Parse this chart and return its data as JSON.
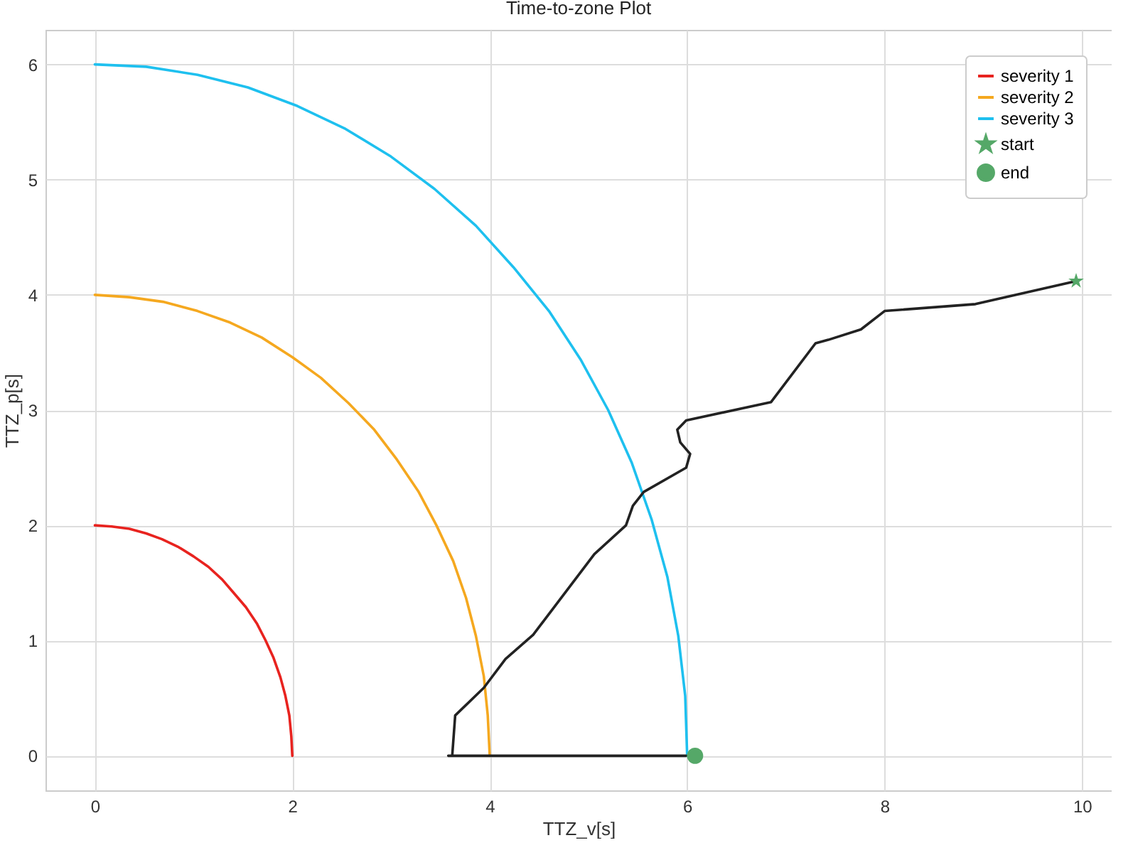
{
  "chart_data": {
    "type": "line",
    "title": "Time-to-zone Plot",
    "xlabel": "TTZ_v[s]",
    "ylabel": "TTZ_p[s]",
    "xlim": [
      -0.5,
      10.3
    ],
    "ylim": [
      -0.3,
      6.3
    ],
    "xticks": [
      0,
      2,
      4,
      6,
      8,
      10
    ],
    "yticks": [
      0,
      1,
      2,
      3,
      4,
      5,
      6
    ],
    "grid": true,
    "legend": "top right",
    "line_style": "solid",
    "series": [
      {
        "name": "severity 1",
        "color": "#e8231f",
        "x": [
          2,
          1.99,
          1.97,
          1.93,
          1.88,
          1.81,
          1.73,
          1.64,
          1.53,
          1.41,
          1.29,
          1.15,
          1,
          0.85,
          0.68,
          0.52,
          0.35,
          0.17,
          0
        ],
        "values": [
          0,
          0.17,
          0.35,
          0.52,
          0.68,
          0.85,
          1,
          1.15,
          1.29,
          1.41,
          1.53,
          1.64,
          1.73,
          1.81,
          1.88,
          1.93,
          1.97,
          1.99,
          2
        ]
      },
      {
        "name": "severity 2",
        "color": "#f5a81f",
        "x": [
          4,
          3.98,
          3.94,
          3.86,
          3.76,
          3.63,
          3.46,
          3.28,
          3.06,
          2.83,
          2.57,
          2.29,
          2,
          1.69,
          1.37,
          1.04,
          0.69,
          0.35,
          0
        ],
        "values": [
          0,
          0.35,
          0.69,
          1.04,
          1.37,
          1.69,
          2,
          2.29,
          2.57,
          2.83,
          3.06,
          3.28,
          3.46,
          3.63,
          3.76,
          3.86,
          3.94,
          3.98,
          4
        ]
      },
      {
        "name": "severity 3",
        "color": "#1ec0ef",
        "x": [
          6,
          5.98,
          5.91,
          5.8,
          5.64,
          5.44,
          5.2,
          4.92,
          4.6,
          4.24,
          3.86,
          3.44,
          3,
          2.54,
          2.05,
          1.55,
          1.04,
          0.52,
          0
        ],
        "values": [
          0,
          0.52,
          1.04,
          1.55,
          2.05,
          2.54,
          3,
          3.44,
          3.86,
          4.24,
          4.6,
          4.92,
          5.2,
          5.44,
          5.64,
          5.8,
          5.91,
          5.98,
          6
        ]
      },
      {
        "color": "#222222",
        "x": [
          9.94,
          8.92,
          8.0,
          7.76,
          7.43,
          7.3,
          6.85,
          5.99,
          5.9,
          5.93,
          6.03,
          5.99,
          5.56,
          5.45,
          5.38,
          5.06,
          4.44,
          4.16,
          3.94,
          3.65,
          3.62,
          3.58,
          5.99
        ],
        "values": [
          4.12,
          3.92,
          3.86,
          3.7,
          3.61,
          3.58,
          3.07,
          2.91,
          2.83,
          2.72,
          2.62,
          2.5,
          2.29,
          2.17,
          2.0,
          1.75,
          1.05,
          0.84,
          0.59,
          0.35,
          0,
          0,
          0
        ]
      },
      {
        "name": "start",
        "type": "scatter",
        "marker": "star",
        "color": "#55a868",
        "x": [
          9.94
        ],
        "values": [
          4.12
        ]
      },
      {
        "name": "end",
        "type": "scatter",
        "marker": "circle",
        "color": "#55a868",
        "x": [
          6.08
        ],
        "values": [
          0
        ]
      }
    ]
  }
}
